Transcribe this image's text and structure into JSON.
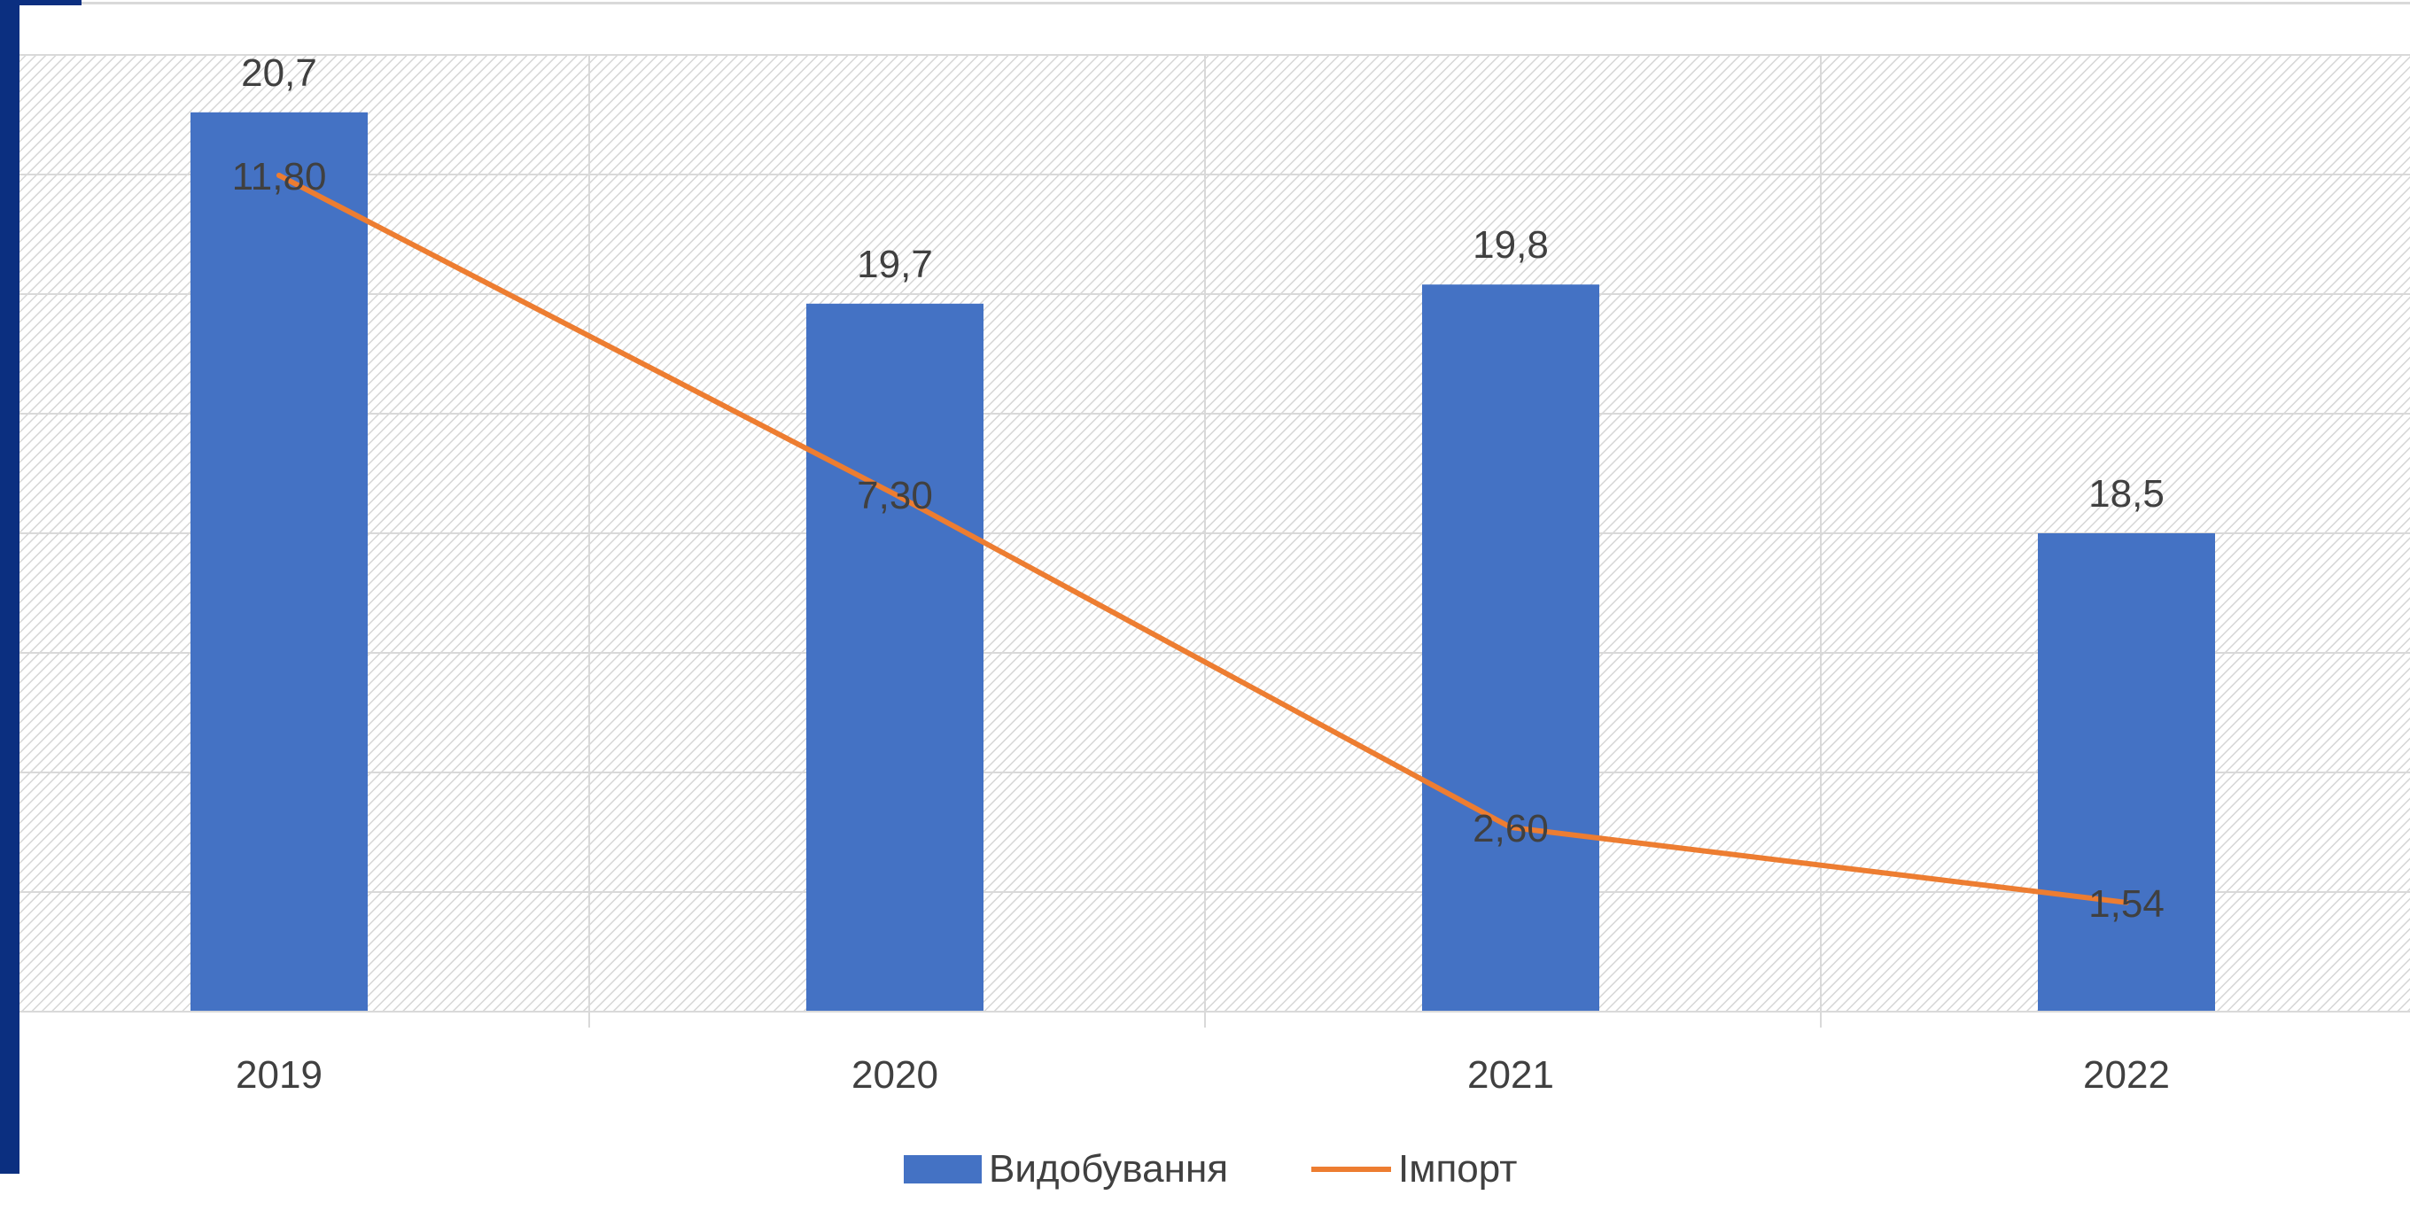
{
  "chart_data": {
    "type": "bar",
    "categories": [
      "2019",
      "2020",
      "2021",
      "2022"
    ],
    "series": [
      {
        "name": "Видобування",
        "type": "bar",
        "color": "#4472c4",
        "values": [
          20.7,
          19.7,
          19.8,
          18.5
        ],
        "labels": [
          "20,7",
          "19,7",
          "19,8",
          "18,5"
        ]
      },
      {
        "name": "Імпорт",
        "type": "line",
        "color": "#ed7d31",
        "values": [
          11.8,
          7.3,
          2.6,
          1.54
        ],
        "labels": [
          "11,80",
          "7,30",
          "2,60",
          "1,54"
        ]
      }
    ],
    "title": "",
    "xlabel": "",
    "ylabel": "",
    "grid": true,
    "legend": "bottom"
  }
}
